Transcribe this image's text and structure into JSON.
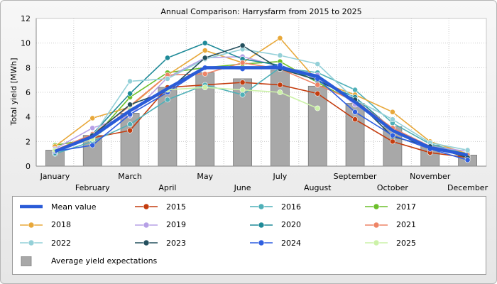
{
  "chart_data": {
    "type": "bar+line",
    "title": "Annual Comparison: Harrysfarm from 2015 to 2025",
    "ylabel": "Total yield [MWh]",
    "xlabel": "",
    "ylim": [
      0,
      12
    ],
    "yticks": [
      0,
      2,
      4,
      6,
      8,
      10,
      12
    ],
    "grid": true,
    "legend_position": "bottom",
    "categories": [
      "January",
      "February",
      "March",
      "April",
      "May",
      "June",
      "July",
      "August",
      "September",
      "October",
      "November",
      "December"
    ],
    "bars": {
      "name": "Average yield expectations",
      "color": "#a8a8a8",
      "values": [
        1.3,
        2.5,
        4.3,
        6.4,
        7.6,
        7.1,
        7.8,
        6.5,
        5.1,
        3.2,
        1.7,
        0.9
      ]
    },
    "series": [
      {
        "name": "Mean value",
        "color": "#2a5bd7",
        "values": [
          1.2,
          2.4,
          4.5,
          6.3,
          8.0,
          8.0,
          8.0,
          7.3,
          5.2,
          2.9,
          1.5,
          0.9
        ]
      },
      {
        "name": "2015",
        "color": "#c43c0e",
        "values": [
          1.2,
          2.3,
          2.9,
          6.4,
          6.6,
          6.8,
          6.6,
          5.9,
          3.8,
          2.0,
          1.1,
          0.7
        ]
      },
      {
        "name": "2016",
        "color": "#4fb0b8",
        "values": [
          1.0,
          2.0,
          3.4,
          5.4,
          6.6,
          5.8,
          8.0,
          7.6,
          6.2,
          3.5,
          1.8,
          1.0
        ]
      },
      {
        "name": "2017",
        "color": "#6cbf2a",
        "values": [
          1.7,
          2.2,
          5.6,
          7.6,
          8.0,
          8.3,
          8.5,
          6.8,
          5.2,
          3.0,
          1.5,
          0.8
        ]
      },
      {
        "name": "2018",
        "color": "#e8a83a",
        "values": [
          1.6,
          3.9,
          4.8,
          7.4,
          9.4,
          8.4,
          10.4,
          6.9,
          5.8,
          4.4,
          2.0,
          1.0
        ]
      },
      {
        "name": "2019",
        "color": "#b6a0e6",
        "values": [
          1.4,
          3.1,
          4.1,
          7.2,
          8.8,
          8.9,
          8.1,
          7.4,
          5.0,
          3.1,
          1.6,
          1.2
        ]
      },
      {
        "name": "2020",
        "color": "#1f8a98",
        "values": [
          1.1,
          2.6,
          5.9,
          8.8,
          10.0,
          8.7,
          8.2,
          6.9,
          5.6,
          3.0,
          1.6,
          1.0
        ]
      },
      {
        "name": "2021",
        "color": "#ee8466",
        "values": [
          1.3,
          2.6,
          4.9,
          7.4,
          7.5,
          8.4,
          7.9,
          6.6,
          5.3,
          3.1,
          1.6,
          0.9
        ]
      },
      {
        "name": "2022",
        "color": "#94d0d8",
        "values": [
          1.2,
          2.4,
          6.9,
          7.1,
          8.7,
          9.5,
          9.0,
          8.3,
          5.4,
          3.8,
          1.9,
          1.3
        ]
      },
      {
        "name": "2023",
        "color": "#24505e",
        "values": [
          1.2,
          2.5,
          5.0,
          6.1,
          8.8,
          9.8,
          7.9,
          7.0,
          5.4,
          2.4,
          1.6,
          0.7
        ]
      },
      {
        "name": "2024",
        "color": "#2f5fe0",
        "values": [
          1.2,
          1.7,
          4.2,
          6.0,
          8.0,
          7.9,
          8.2,
          7.1,
          4.4,
          2.5,
          1.4,
          0.5
        ]
      },
      {
        "name": "2025",
        "color": "#ccf2a8",
        "values": [
          1.3,
          2.2,
          4.6,
          6.2,
          6.4,
          6.2,
          6.0,
          4.7,
          null,
          null,
          null,
          null
        ]
      }
    ]
  },
  "legend": {
    "items": [
      {
        "label": "Mean value",
        "kind": "line",
        "color": "#2a5bd7"
      },
      {
        "label": "2015",
        "kind": "line",
        "color": "#c43c0e"
      },
      {
        "label": "2016",
        "kind": "line",
        "color": "#4fb0b8"
      },
      {
        "label": "2017",
        "kind": "line",
        "color": "#6cbf2a"
      },
      {
        "label": "2018",
        "kind": "line",
        "color": "#e8a83a"
      },
      {
        "label": "2019",
        "kind": "line",
        "color": "#b6a0e6"
      },
      {
        "label": "2020",
        "kind": "line",
        "color": "#1f8a98"
      },
      {
        "label": "2021",
        "kind": "line",
        "color": "#ee8466"
      },
      {
        "label": "2022",
        "kind": "line",
        "color": "#94d0d8"
      },
      {
        "label": "2023",
        "kind": "line",
        "color": "#24505e"
      },
      {
        "label": "2024",
        "kind": "line",
        "color": "#2f5fe0"
      },
      {
        "label": "2025",
        "kind": "line",
        "color": "#ccf2a8"
      },
      {
        "label": "Average yield expectations",
        "kind": "bar",
        "color": "#a8a8a8"
      }
    ]
  }
}
